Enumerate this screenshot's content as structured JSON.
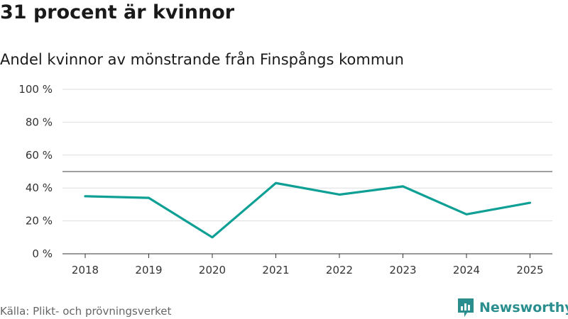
{
  "chart_data": {
    "type": "line",
    "title": "31 procent är kvinnor",
    "subtitle": "Andel kvinnor av mönstrande från Finspångs kommun",
    "x": [
      "2018",
      "2019",
      "2020",
      "2021",
      "2022",
      "2023",
      "2024",
      "2025"
    ],
    "series": [
      {
        "name": "Andel kvinnor",
        "values": [
          35,
          34,
          10,
          43,
          36,
          41,
          24,
          31
        ]
      }
    ],
    "reference_line": 50,
    "ylim": [
      0,
      100
    ],
    "yticks": [
      0,
      20,
      40,
      60,
      80,
      100
    ],
    "ytick_labels": [
      "0 %",
      "20 %",
      "40 %",
      "60 %",
      "80 %",
      "100 %"
    ],
    "xlabel": "",
    "ylabel": "",
    "grid": true,
    "line_color": "#0e9f95"
  },
  "footer": {
    "source": "Källa: Plikt- och prövningsverket",
    "brand": "Newsworthy",
    "brand_color": "#2a8e8e"
  }
}
